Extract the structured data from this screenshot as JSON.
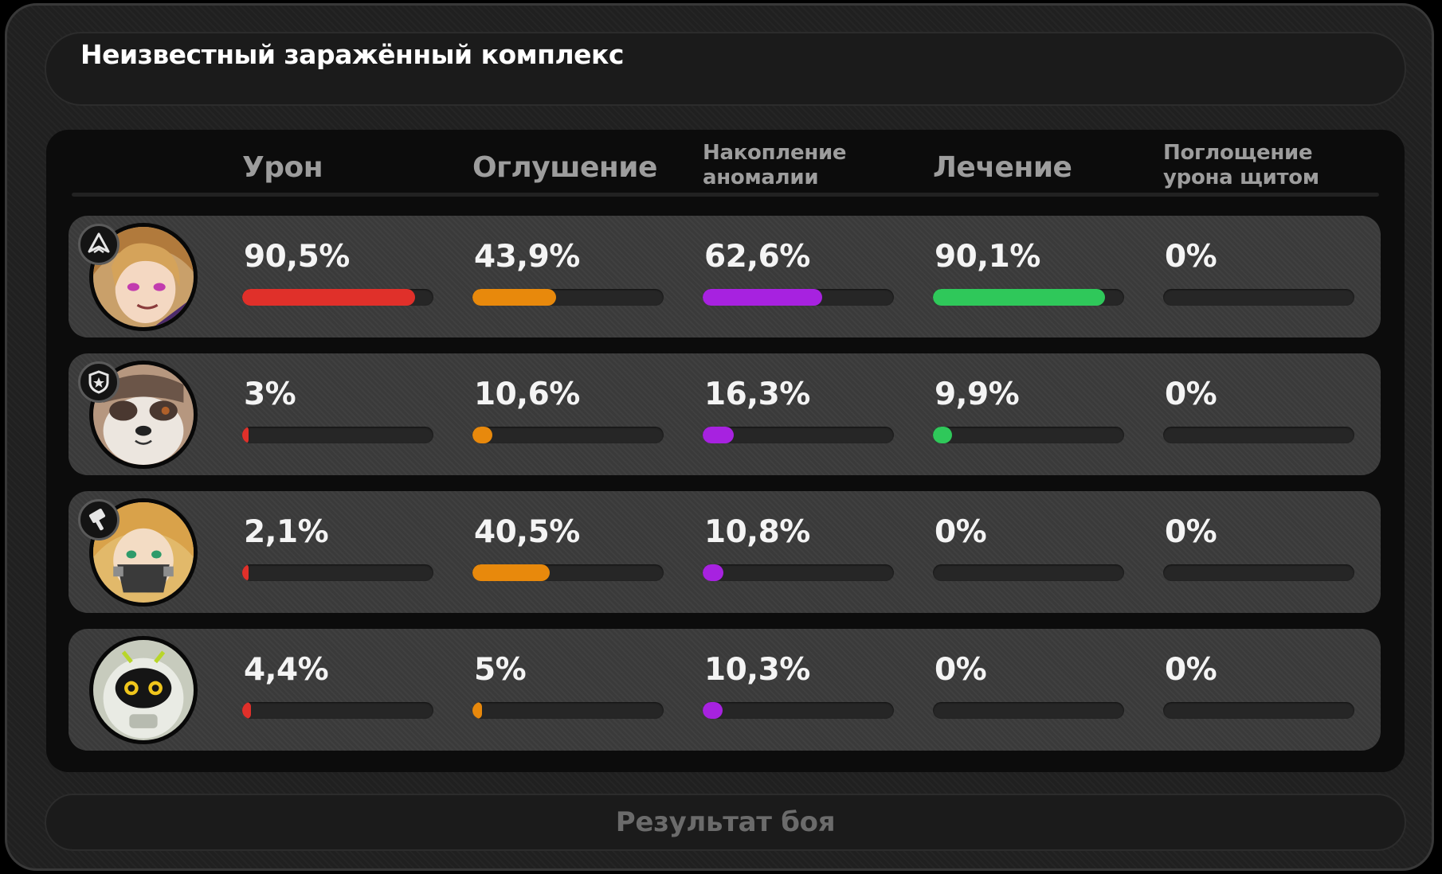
{
  "header": {
    "title": "Неизвестный заражённый комплекс"
  },
  "columns": [
    {
      "key": "damage",
      "label": "Урон",
      "color": "#e0302a"
    },
    {
      "key": "daze",
      "label": "Оглушение",
      "color": "#e8890c"
    },
    {
      "key": "anomaly",
      "label": "Накопление аномалии",
      "color": "#a722e0"
    },
    {
      "key": "healing",
      "label": "Лечение",
      "color": "#2fc85a"
    },
    {
      "key": "shield",
      "label": "Поглощение урона щитом",
      "color": "#7a7a7a"
    }
  ],
  "agents": [
    {
      "avatar_icon": "blonde-agent-portrait",
      "role_icon": "attack-role-icon",
      "stats": [
        {
          "text": "90,5%",
          "value": 90.5
        },
        {
          "text": "43,9%",
          "value": 43.9
        },
        {
          "text": "62,6%",
          "value": 62.6
        },
        {
          "text": "90,1%",
          "value": 90.1
        },
        {
          "text": "0%",
          "value": 0
        }
      ]
    },
    {
      "avatar_icon": "panda-agent-portrait",
      "role_icon": "defense-role-icon",
      "stats": [
        {
          "text": "3%",
          "value": 3
        },
        {
          "text": "10,6%",
          "value": 10.6
        },
        {
          "text": "16,3%",
          "value": 16.3
        },
        {
          "text": "9,9%",
          "value": 9.9
        },
        {
          "text": "0%",
          "value": 0
        }
      ]
    },
    {
      "avatar_icon": "masked-agent-portrait",
      "role_icon": "stun-role-icon",
      "stats": [
        {
          "text": "2,1%",
          "value": 2.1
        },
        {
          "text": "40,5%",
          "value": 40.5
        },
        {
          "text": "10,8%",
          "value": 10.8
        },
        {
          "text": "0%",
          "value": 0
        },
        {
          "text": "0%",
          "value": 0
        }
      ]
    },
    {
      "avatar_icon": "bangboo-portrait",
      "role_icon": "",
      "stats": [
        {
          "text": "4,4%",
          "value": 4.4
        },
        {
          "text": "5%",
          "value": 5
        },
        {
          "text": "10,3%",
          "value": 10.3
        },
        {
          "text": "0%",
          "value": 0
        },
        {
          "text": "0%",
          "value": 0
        }
      ]
    }
  ],
  "footer": {
    "label": "Результат боя"
  }
}
